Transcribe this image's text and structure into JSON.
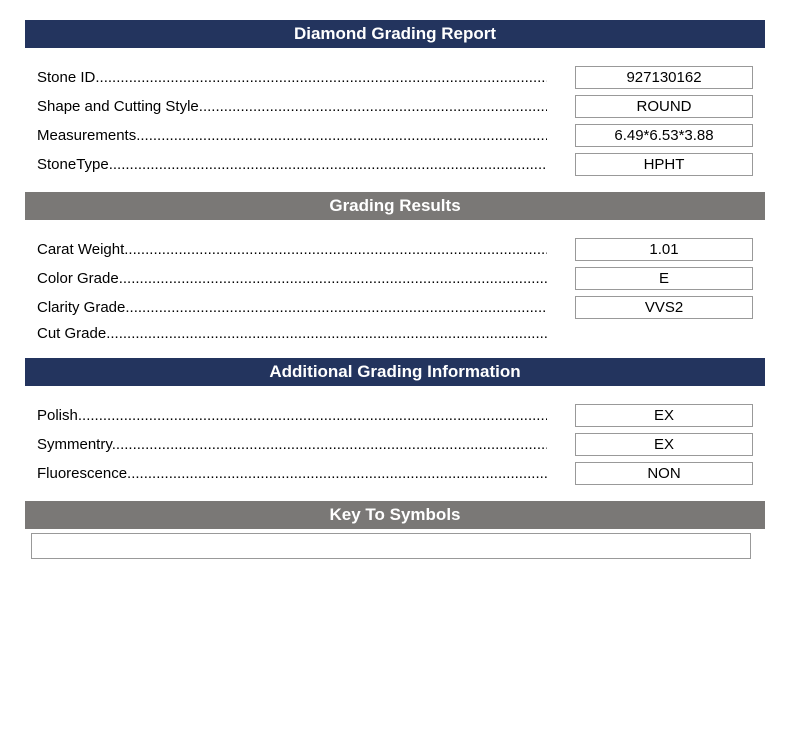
{
  "colors": {
    "navy": "#23345e",
    "gray": "#7a7876",
    "border": "#999999",
    "text": "#000000",
    "header_text": "#ffffff",
    "background": "#ffffff"
  },
  "typography": {
    "font_family": "Arial, Helvetica, sans-serif",
    "header_fontsize": 17,
    "body_fontsize": 15,
    "header_weight": "bold"
  },
  "sections": {
    "main_title": "Diamond Grading Report",
    "grading_results_title": "Grading Results",
    "additional_title": "Additional Grading Information",
    "key_title": "Key To Symbols"
  },
  "identification": {
    "stone_id": {
      "label": "Stone ID",
      "value": "927130162"
    },
    "shape": {
      "label": "Shape and Cutting Style",
      "value": "ROUND"
    },
    "measurements": {
      "label": "Measurements",
      "value": "6.49*6.53*3.88"
    },
    "stone_type": {
      "label": "StoneType",
      "value": "HPHT"
    }
  },
  "grading": {
    "carat_weight": {
      "label": "Carat Weight",
      "value": "1.01"
    },
    "color_grade": {
      "label": "Color Grade",
      "value": "E"
    },
    "clarity_grade": {
      "label": "Clarity Grade",
      "value": "VVS2"
    },
    "cut_grade": {
      "label": "Cut Grade",
      "value": ""
    }
  },
  "additional": {
    "polish": {
      "label": "Polish",
      "value": "EX"
    },
    "symmetry": {
      "label": "Symmentry",
      "value": "EX"
    },
    "fluorescence": {
      "label": "Fluorescence",
      "value": "NON"
    }
  },
  "symbols_content": ""
}
